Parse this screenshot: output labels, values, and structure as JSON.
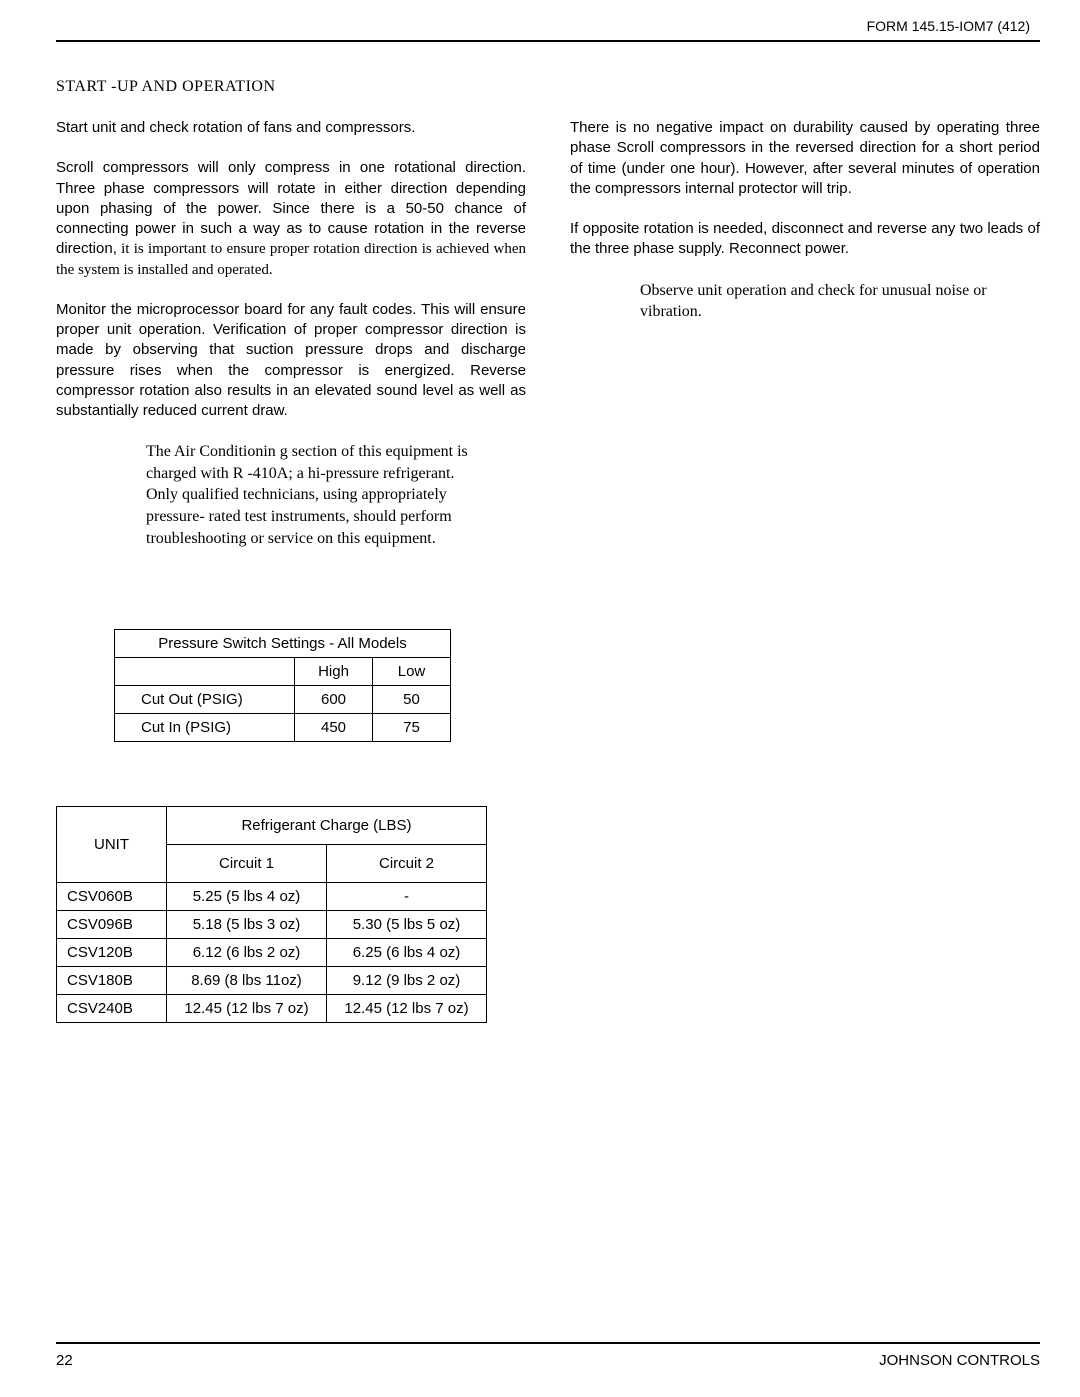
{
  "header": {
    "form_id": "FORM 145.15-IOM7 (412)"
  },
  "section_title": "START -UP AND OPERATION",
  "left_col": {
    "p1": "Start unit and check rotation of fans and compressors.",
    "p2_a": "Scroll compressors will only compress in one rotational direction. Three phase compressors will rotate in either direction depending upon phasing of the power. Since there is a 50-50 chance of connecting power in such a way as to cause rotation in the reverse direction,",
    "p2_b": " it is important to ensure proper rotation direction is achieved when the system is installed and operated.",
    "p3": "Monitor the microprocessor board for any fault codes. This will ensure proper unit operation. Verification of proper compressor direction is made by observing that suction pressure drops and discharge pressure rises when the compressor is energized. Reverse compressor rotation also results in an elevated sound level as well as substantially reduced current draw.",
    "warning": "The Air Conditionin    g section of this equipment is charged with R      -410A; a hi-pressure refrigerant. Only qualified technicians, using appropriately pressure-   rated test instruments, should perform troubleshooting or service on this equipment."
  },
  "right_col": {
    "p1": "There is no negative impact on durability caused by operating three phase Scroll compressors in the reversed direction for a short period of time (under one hour). However, after several minutes of operation the compressors internal protector will trip.",
    "p2": "If opposite rotation is needed, disconnect and reverse any two leads of the three phase supply. Reconnect power.",
    "observe": "Observe unit operation and check for unusual noise or vibration."
  },
  "pressure_table": {
    "title": "Pressure Switch Settings - All Models",
    "col_high": "High",
    "col_low": "Low",
    "rows": [
      {
        "label": "Cut Out  (PSIG)",
        "high": "600",
        "low": "50"
      },
      {
        "label": "Cut In  (PSIG)",
        "high": "450",
        "low": "75"
      }
    ]
  },
  "refrig_table": {
    "unit_hdr": "UNIT",
    "charge_hdr": "Refrigerant Charge (LBS)",
    "c1_hdr": "Circuit 1",
    "c2_hdr": "Circuit 2",
    "rows": [
      {
        "unit": "CSV060B",
        "c1": "5.25 (5 lbs 4 oz)",
        "c2": "-"
      },
      {
        "unit": "CSV096B",
        "c1": "5.18 (5 lbs 3 oz)",
        "c2": "5.30 (5 lbs 5 oz)"
      },
      {
        "unit": "CSV120B",
        "c1": "6.12 (6 lbs 2 oz)",
        "c2": "6.25 (6 lbs 4 oz)"
      },
      {
        "unit": "CSV180B",
        "c1": "8.69 (8 lbs 11oz)",
        "c2": "9.12 (9 lbs 2 oz)"
      },
      {
        "unit": "CSV240B",
        "c1": "12.45 (12 lbs 7 oz)",
        "c2": "12.45 (12 lbs 7 oz)"
      }
    ]
  },
  "footer": {
    "page_number": "22",
    "company": "JOHNSON CONTROLS"
  }
}
